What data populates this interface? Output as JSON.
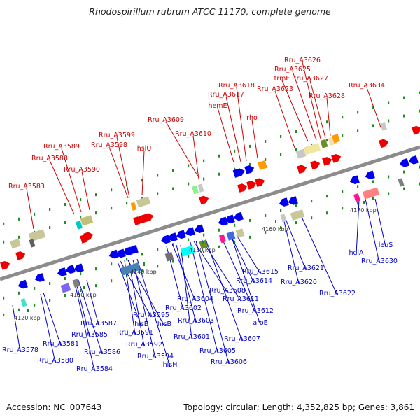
{
  "title": "Rhodospirillum rubrum ATCC 11170, complete genome",
  "footer": {
    "accession": "Accession: NC_007643",
    "topology": "Topology: circular; Length: 4,352,825 bp; Genes: 3,861"
  },
  "colors": {
    "backbone": "#8c8c8c",
    "top_strand_gene": "#ee0000",
    "bottom_strand_gene": "#0000ee",
    "top_label": "#cc0000",
    "bottom_label": "#0000cc",
    "tick_mark": "#228b22"
  },
  "scale_ticks": [
    "4120 kbp",
    "4130 kbp",
    "4140 kbp",
    "4150 kbp",
    "4160 kbp",
    "4170 kbp"
  ],
  "top_labels": [
    "Rru_A3583",
    "Rru_A3588",
    "Rru_A3589",
    "Rru_A3590",
    "Rru_A3599",
    "Rru_A3598",
    "hslU",
    "Rru_A3609",
    "Rru_A3610",
    "hemE",
    "Rru_A3617",
    "Rru_A3618",
    "rho",
    "Rru_A3623",
    "Rru_A3626",
    "Rru_A3625",
    "trmE",
    "Rru_A3627",
    "Rru_A3628",
    "Rru_A3634"
  ],
  "bottom_labels": [
    "Rru_A3578",
    "Rru_A3581",
    "Rru_A3580",
    "Rru_A3585",
    "Rru_A3587",
    "Rru_A3586",
    "Rru_A3584",
    "Rru_A3595",
    "hisE",
    "hisB",
    "Rru_A3591",
    "Rru_A3592",
    "Rru_A3594",
    "hisH",
    "Rru_A3602",
    "Rru_A3604",
    "Rru_A3603",
    "Rru_A3601",
    "Rru_A3608",
    "Rru_A3611",
    "Rru_A3605",
    "Rru_A3606",
    "Rru_A3607",
    "Rru_A3612",
    "aroE",
    "Rru_A3614",
    "Rru_A3615",
    "Rru_A3621",
    "Rru_A3620",
    "Rru_A3622",
    "holA",
    "leuS",
    "Rru_A3630"
  ]
}
